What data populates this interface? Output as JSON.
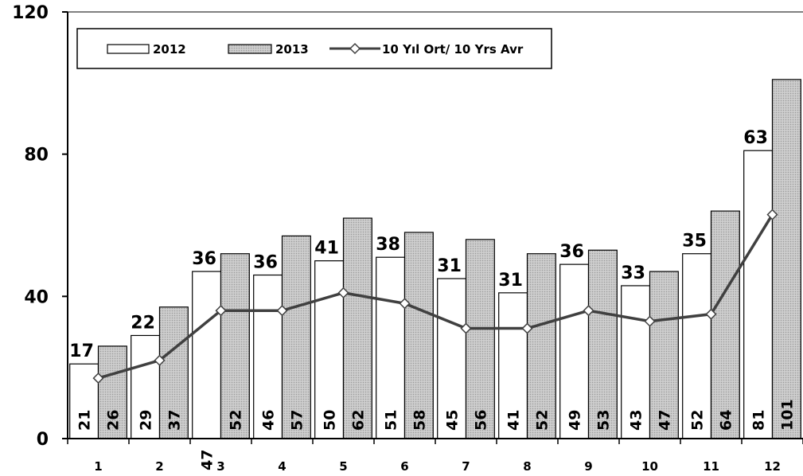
{
  "chart_data": {
    "type": "bar",
    "categories": [
      "1",
      "2",
      "3",
      "4",
      "5",
      "6",
      "7",
      "8",
      "9",
      "10",
      "11",
      "12"
    ],
    "series": [
      {
        "name": "2012",
        "kind": "bar",
        "fill": "#ffffff",
        "values": [
          21,
          29,
          47,
          46,
          50,
          51,
          45,
          41,
          49,
          43,
          52,
          81
        ]
      },
      {
        "name": "2013",
        "kind": "bar",
        "fill": "#c8c8c8",
        "values": [
          26,
          37,
          52,
          57,
          62,
          58,
          56,
          52,
          53,
          47,
          64,
          101
        ]
      },
      {
        "name": "10 Yıl Ort/ 10 Yrs Avr",
        "kind": "line",
        "color": "#404040",
        "values": [
          17,
          22,
          36,
          36,
          41,
          38,
          31,
          31,
          36,
          33,
          35,
          63
        ]
      }
    ],
    "yticks": [
      "0",
      "40",
      "80",
      "120"
    ],
    "ylim": [
      0,
      120
    ],
    "grid": false,
    "legend_position": "top-left"
  }
}
